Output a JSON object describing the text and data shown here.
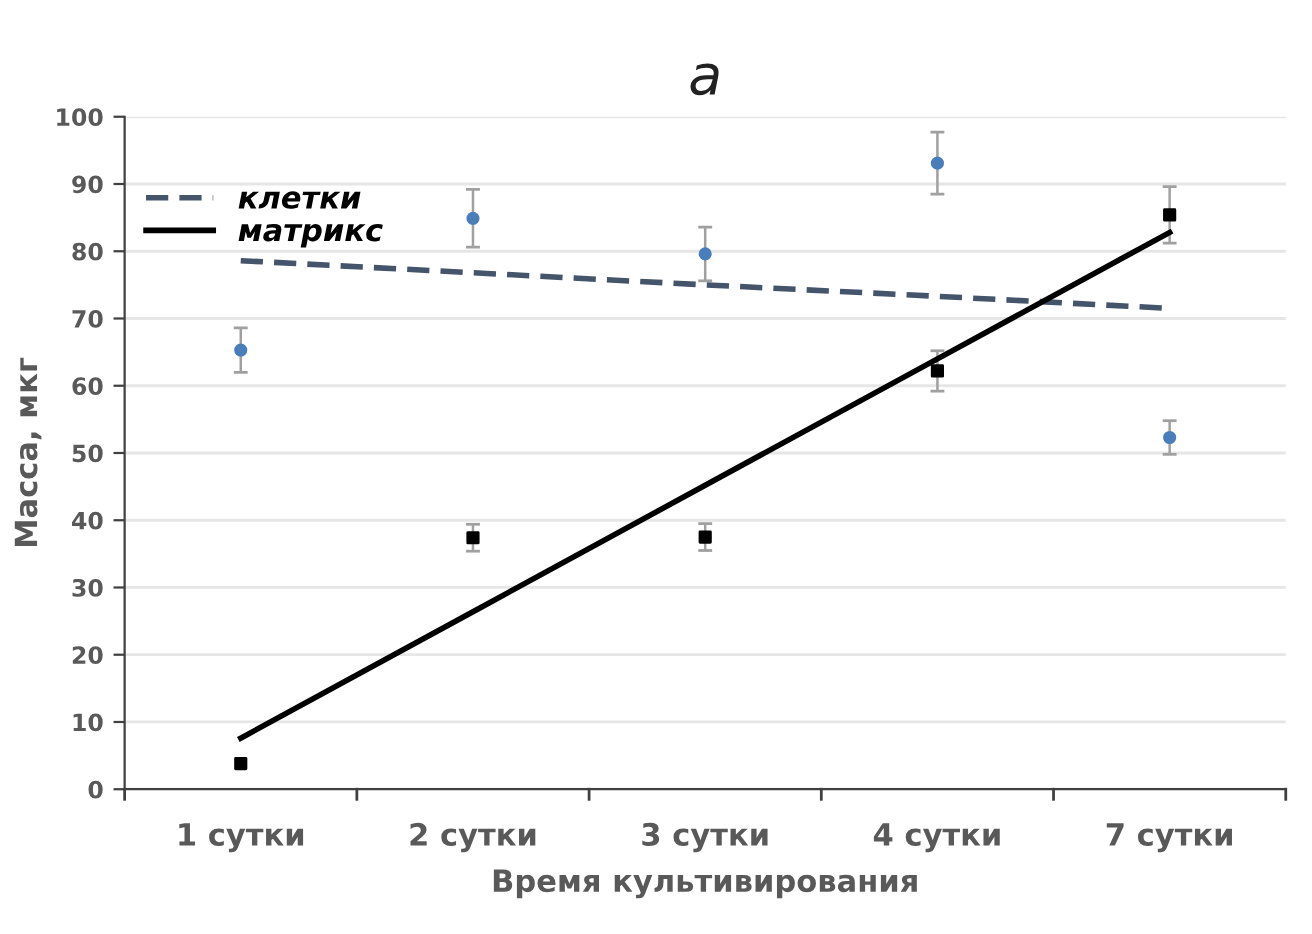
{
  "chart_data": {
    "type": "scatter",
    "title": "а",
    "xlabel": "Время культивирования",
    "ylabel": "Масса, мкг",
    "categories": [
      "1 сутки",
      "2 сутки",
      "3 сутки",
      "4 сутки",
      "7 сутки"
    ],
    "series": [
      {
        "color": "#4a7ebb",
        "marker": "circle",
        "values": [
          65.3,
          84.9,
          79.6,
          93.1,
          52.3
        ],
        "errors": [
          3.3,
          4.3,
          4.0,
          4.6,
          2.5
        ]
      },
      {
        "color": "#000000",
        "marker": "square",
        "values": [
          3.8,
          37.4,
          37.5,
          62.2,
          85.4
        ],
        "errors": [
          null,
          2.0,
          2.0,
          3.0,
          4.2
        ]
      },
      {
        "type": "line",
        "name": "клетки",
        "color": "#44546a",
        "line_style": "dashed",
        "values": [
          78.6,
          76.8,
          75.0,
          73.3,
          71.5
        ]
      },
      {
        "type": "line",
        "name": "матрикс",
        "color": "#000000",
        "line_style": "solid",
        "values": [
          7.6,
          26.4,
          45.2,
          64.0,
          82.8
        ]
      }
    ],
    "ylim": [
      0,
      100
    ],
    "yticks": [
      0,
      10,
      20,
      30,
      40,
      50,
      60,
      70,
      80,
      90,
      100
    ],
    "grid": "y",
    "legend": "top left"
  }
}
